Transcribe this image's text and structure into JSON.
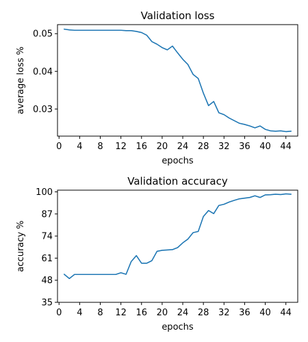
{
  "chart_data": [
    {
      "type": "line",
      "title": "Validation loss",
      "xlabel": "epochs",
      "ylabel": "average loss %",
      "xlim": [
        -0.3,
        46.3
      ],
      "ylim": [
        0.0228,
        0.0524
      ],
      "xticks": [
        0,
        4,
        8,
        12,
        16,
        20,
        24,
        28,
        32,
        36,
        40,
        44
      ],
      "yticks": [
        0.03,
        0.04,
        0.05
      ],
      "ytick_labels": [
        "0.03",
        "0.04",
        "0.05"
      ],
      "grid": false,
      "series": [
        {
          "color": "#1f77b4",
          "x": [
            1,
            2,
            3,
            4,
            5,
            6,
            7,
            8,
            9,
            10,
            11,
            12,
            13,
            14,
            15,
            16,
            17,
            18,
            19,
            20,
            21,
            22,
            23,
            24,
            25,
            26,
            27,
            28,
            29,
            30,
            31,
            32,
            33,
            34,
            35,
            36,
            37,
            38,
            39,
            40,
            41,
            42,
            43,
            44,
            45
          ],
          "y": [
            0.0512,
            0.051,
            0.0509,
            0.0509,
            0.0509,
            0.0509,
            0.0509,
            0.0509,
            0.0509,
            0.0509,
            0.0509,
            0.0509,
            0.0508,
            0.0508,
            0.0506,
            0.0503,
            0.0496,
            0.0479,
            0.0472,
            0.0463,
            0.0457,
            0.0467,
            0.0449,
            0.0432,
            0.0418,
            0.0392,
            0.0381,
            0.0342,
            0.0309,
            0.032,
            0.029,
            0.0285,
            0.0276,
            0.0269,
            0.0262,
            0.0259,
            0.0255,
            0.025,
            0.0255,
            0.0246,
            0.0242,
            0.0241,
            0.0242,
            0.024,
            0.0241
          ]
        }
      ]
    },
    {
      "type": "line",
      "title": "Validation accuracy",
      "xlabel": "epochs",
      "ylabel": "accuracy %",
      "xlim": [
        -0.3,
        46.3
      ],
      "ylim": [
        35,
        101
      ],
      "xticks": [
        0,
        4,
        8,
        12,
        16,
        20,
        24,
        28,
        32,
        36,
        40,
        44
      ],
      "yticks": [
        35,
        48,
        61,
        74,
        87,
        100
      ],
      "ytick_labels": [
        "35",
        "48",
        "61",
        "74",
        "87",
        "100"
      ],
      "grid": false,
      "series": [
        {
          "color": "#1f77b4",
          "x": [
            1,
            2,
            3,
            4,
            5,
            6,
            7,
            8,
            9,
            10,
            11,
            12,
            13,
            14,
            15,
            16,
            17,
            18,
            19,
            20,
            21,
            22,
            23,
            24,
            25,
            26,
            27,
            28,
            29,
            30,
            31,
            32,
            33,
            34,
            35,
            36,
            37,
            38,
            39,
            40,
            41,
            42,
            43,
            44,
            45
          ],
          "y": [
            51.5,
            49,
            51.4,
            51.4,
            51.4,
            51.4,
            51.4,
            51.4,
            51.4,
            51.4,
            51.4,
            52.4,
            51.5,
            59,
            62.5,
            58,
            58,
            59.5,
            65,
            65.6,
            65.8,
            66,
            67.2,
            70,
            72.2,
            76,
            76.7,
            85.5,
            89,
            87.2,
            92,
            92.7,
            94,
            95,
            95.9,
            96.3,
            96.7,
            97.7,
            96.7,
            98.2,
            98.3,
            98.6,
            98.4,
            98.8,
            98.6
          ]
        }
      ]
    }
  ]
}
